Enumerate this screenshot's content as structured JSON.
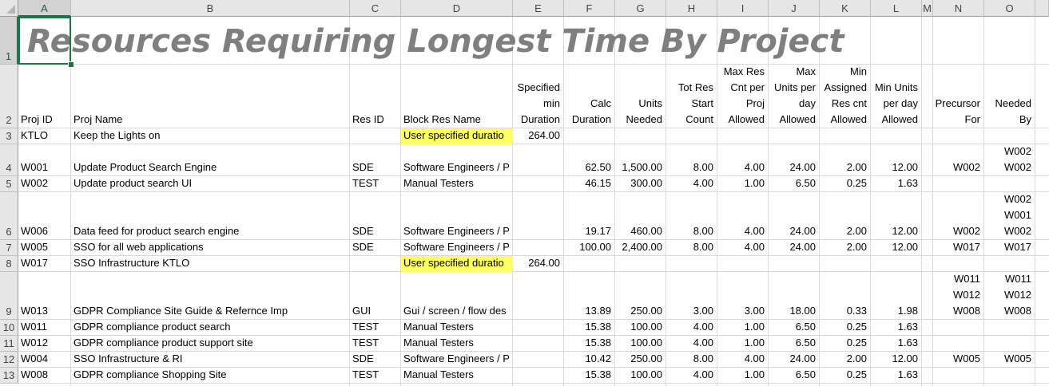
{
  "sheet": {
    "title": "Resources Requiring Longest Time By Project",
    "columns": [
      "A",
      "B",
      "C",
      "D",
      "E",
      "F",
      "G",
      "H",
      "I",
      "J",
      "K",
      "L",
      "M",
      "N",
      "O"
    ],
    "row_numbers": [
      "1",
      "2",
      "3",
      "4",
      "5",
      "6",
      "7",
      "8",
      "9",
      "10",
      "11",
      "12",
      "13"
    ],
    "selected_cell": "A1",
    "header_row": [
      [
        "Proj ID"
      ],
      [
        "Proj Name"
      ],
      [
        "Res ID"
      ],
      [
        "Block Res Name"
      ],
      [
        "Specified",
        "min",
        "Duration"
      ],
      [
        "Calc",
        "Duration"
      ],
      [
        "Units",
        "Needed"
      ],
      [
        "Tot Res",
        "Start",
        "Count"
      ],
      [
        "Max Res",
        "Cnt per",
        "Proj",
        "Allowed"
      ],
      [
        "Max",
        "Units per",
        "day",
        "Allowed"
      ],
      [
        "Min",
        "Assigned",
        "Res cnt",
        "Allowed"
      ],
      [
        "Min Units",
        "per day",
        "Allowed"
      ],
      [],
      [
        "Precursor",
        "For"
      ],
      [
        "Needed",
        "By"
      ]
    ],
    "rows": [
      {
        "cells": [
          [
            "KTLO"
          ],
          [
            "Keep the Lights on"
          ],
          [],
          [
            "User specified duratio"
          ],
          [
            "264.00"
          ],
          [],
          [],
          [],
          [],
          [],
          [],
          [],
          [],
          [],
          []
        ]
      },
      {
        "cells": [
          [
            "W001"
          ],
          [
            "Update Product Search Engine"
          ],
          [
            "SDE"
          ],
          [
            "Software Engineers / P"
          ],
          [],
          [
            "62.50"
          ],
          [
            "1,500.00"
          ],
          [
            "8.00"
          ],
          [
            "4.00"
          ],
          [
            "24.00"
          ],
          [
            "2.00"
          ],
          [
            "12.00"
          ],
          [],
          [
            "W002"
          ],
          [
            "W002",
            "W002"
          ]
        ]
      },
      {
        "cells": [
          [
            "W002"
          ],
          [
            "Update product search UI"
          ],
          [
            "TEST"
          ],
          [
            "Manual Testers"
          ],
          [],
          [
            "46.15"
          ],
          [
            "300.00"
          ],
          [
            "4.00"
          ],
          [
            "1.00"
          ],
          [
            "6.50"
          ],
          [
            "0.25"
          ],
          [
            "1.63"
          ],
          [],
          [],
          []
        ]
      },
      {
        "cells": [
          [
            "W006"
          ],
          [
            "Data feed for product search engine"
          ],
          [
            "SDE"
          ],
          [
            "Software Engineers / P"
          ],
          [],
          [
            "19.17"
          ],
          [
            "460.00"
          ],
          [
            "8.00"
          ],
          [
            "4.00"
          ],
          [
            "24.00"
          ],
          [
            "2.00"
          ],
          [
            "12.00"
          ],
          [],
          [
            "W002"
          ],
          [
            "W002",
            "W001",
            "W002"
          ]
        ]
      },
      {
        "cells": [
          [
            "W005"
          ],
          [
            "SSO for all web applications"
          ],
          [
            "SDE"
          ],
          [
            "Software Engineers / P"
          ],
          [],
          [
            "100.00"
          ],
          [
            "2,400.00"
          ],
          [
            "8.00"
          ],
          [
            "4.00"
          ],
          [
            "24.00"
          ],
          [
            "2.00"
          ],
          [
            "12.00"
          ],
          [],
          [
            "W017"
          ],
          [
            "W017"
          ]
        ]
      },
      {
        "cells": [
          [
            "W017"
          ],
          [
            "SSO Infrastructure KTLO"
          ],
          [],
          [
            "User specified duratio"
          ],
          [
            "264.00"
          ],
          [],
          [],
          [],
          [],
          [],
          [],
          [],
          [],
          [],
          []
        ]
      },
      {
        "cells": [
          [
            "W013"
          ],
          [
            "GDPR Compliance Site Guide & Refernce Imp"
          ],
          [
            "GUI"
          ],
          [
            "Gui / screen / flow des"
          ],
          [],
          [
            "13.89"
          ],
          [
            "250.00"
          ],
          [
            "3.00"
          ],
          [
            "3.00"
          ],
          [
            "18.00"
          ],
          [
            "0.33"
          ],
          [
            "1.98"
          ],
          [],
          [
            "W011",
            "W012",
            "W008"
          ],
          [
            "W011",
            "W012",
            "W008"
          ]
        ]
      },
      {
        "cells": [
          [
            "W011"
          ],
          [
            "GDPR compliance product search"
          ],
          [
            "TEST"
          ],
          [
            "Manual Testers"
          ],
          [],
          [
            "15.38"
          ],
          [
            "100.00"
          ],
          [
            "4.00"
          ],
          [
            "1.00"
          ],
          [
            "6.50"
          ],
          [
            "0.25"
          ],
          [
            "1.63"
          ],
          [],
          [],
          []
        ]
      },
      {
        "cells": [
          [
            "W012"
          ],
          [
            "GDPR compliance product support site"
          ],
          [
            "TEST"
          ],
          [
            "Manual Testers"
          ],
          [],
          [
            "15.38"
          ],
          [
            "100.00"
          ],
          [
            "4.00"
          ],
          [
            "1.00"
          ],
          [
            "6.50"
          ],
          [
            "0.25"
          ],
          [
            "1.63"
          ],
          [],
          [],
          []
        ]
      },
      {
        "cells": [
          [
            "W004"
          ],
          [
            "SSO Infrastructure & RI"
          ],
          [
            "SDE"
          ],
          [
            "Software Engineers / P"
          ],
          [],
          [
            "10.42"
          ],
          [
            "250.00"
          ],
          [
            "8.00"
          ],
          [
            "4.00"
          ],
          [
            "24.00"
          ],
          [
            "2.00"
          ],
          [
            "12.00"
          ],
          [],
          [
            "W005"
          ],
          [
            "W005"
          ]
        ]
      },
      {
        "cells": [
          [
            "W008"
          ],
          [
            "GDPR compliance Shopping Site"
          ],
          [
            "TEST"
          ],
          [
            "Manual Testers"
          ],
          [],
          [
            "15.38"
          ],
          [
            "100.00"
          ],
          [
            "4.00"
          ],
          [
            "1.00"
          ],
          [
            "6.50"
          ],
          [
            "0.25"
          ],
          [
            "1.63"
          ],
          [],
          [],
          []
        ]
      }
    ],
    "highlight_color": "#ffff66",
    "title_color": "#7f7f7f",
    "selection_color": "#217346"
  }
}
